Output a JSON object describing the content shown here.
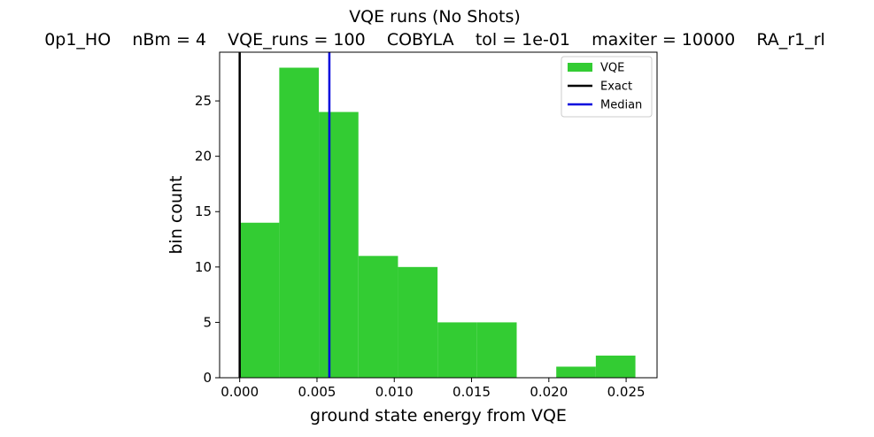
{
  "chart_data": {
    "type": "bar",
    "title": "VQE runs (No Shots)",
    "subtitle": "0p1_HO    nBm = 4    VQE_runs = 100    COBYLA    tol = 1e-01    maxiter = 10000    RA_r1_rl",
    "xlabel": "ground state energy from VQE",
    "ylabel": "bin count",
    "xlim": [
      -0.0013,
      0.027
    ],
    "ylim": [
      0,
      29.4
    ],
    "x_ticks": [
      0.0,
      0.005,
      0.01,
      0.015,
      0.02,
      0.025
    ],
    "x_tick_labels": [
      "0.000",
      "0.005",
      "0.010",
      "0.015",
      "0.020",
      "0.025"
    ],
    "y_ticks": [
      0,
      5,
      10,
      15,
      20,
      25
    ],
    "y_tick_labels": [
      "0",
      "5",
      "10",
      "15",
      "20",
      "25"
    ],
    "bin_edges": [
      0.0,
      0.00256,
      0.00512,
      0.00768,
      0.01024,
      0.0128,
      0.01536,
      0.01792,
      0.02048,
      0.02304,
      0.0256
    ],
    "counts": [
      14,
      28,
      24,
      11,
      10,
      5,
      5,
      0,
      1,
      2
    ],
    "exact": 0.0,
    "median": 0.0058,
    "legend": {
      "position": "top-right",
      "entries": [
        {
          "label": "VQE",
          "kind": "patch",
          "color": "#33cc33"
        },
        {
          "label": "Exact",
          "kind": "line",
          "color": "#000000"
        },
        {
          "label": "Median",
          "kind": "line",
          "color": "#0000dd"
        }
      ]
    },
    "colors": {
      "bars": "#33cc33",
      "exact": "#000000",
      "median": "#0000dd"
    },
    "grid": false
  }
}
